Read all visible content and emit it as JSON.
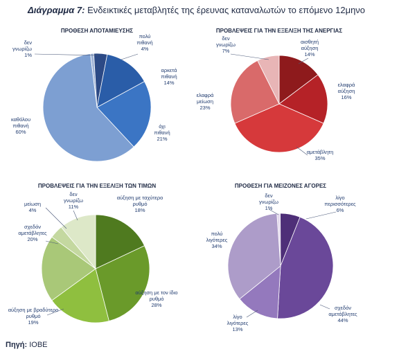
{
  "figure": {
    "title_prefix": "Διάγραμμα 7:",
    "title": "Ενδεικτικές μεταβλητές της έρευνας καταναλωτών το επόμενο 12μηνο",
    "source_label": "Πηγή:",
    "source": "ΙΟΒΕ"
  },
  "chart_data": [
    {
      "type": "pie",
      "title": "ΠΡΟΘΕΣΗ ΑΠΟΤΑΜΙΕΥΣΗΣ",
      "slices": [
        {
          "label": "δεν γνωρίζω",
          "value": 1,
          "value_label": "1%",
          "color": "#9fb3d6"
        },
        {
          "label": "πολύ πιθανή",
          "value": 4,
          "value_label": "4%",
          "color": "#2c4a86"
        },
        {
          "label": "αρκετά πιθανή",
          "value": 14,
          "value_label": "14%",
          "color": "#2a5da8"
        },
        {
          "label": "όχι πιθανή",
          "value": 21,
          "value_label": "21%",
          "color": "#3b75c4"
        },
        {
          "label": "καθόλου πιθανή",
          "value": 60,
          "value_label": "60%",
          "color": "#7d9fd2"
        }
      ]
    },
    {
      "type": "pie",
      "title": "ΠΡΟΒΛΕΨΕΙΣ ΓΙΑ ΤΗΝ ΕΞΕΛΙΞΗ ΤΗΣ ΑΝΕΡΓΙΑΣ",
      "slices": [
        {
          "label": "αισθητή αύξηση",
          "value": 14,
          "value_label": "14%",
          "color": "#8e1a1c"
        },
        {
          "label": "ελαφρά αύξηση",
          "value": 16,
          "value_label": "16%",
          "color": "#b52227"
        },
        {
          "label": "αμετάβλητη",
          "value": 35,
          "value_label": "35%",
          "color": "#d6393b"
        },
        {
          "label": "ελαφρά μείωση",
          "value": 23,
          "value_label": "23%",
          "color": "#d96a6a"
        },
        {
          "label": "δεν γνωρίζω",
          "value": 7,
          "value_label": "7%",
          "color": "#e8b5b6"
        }
      ]
    },
    {
      "type": "pie",
      "title": "ΠΡΟΒΛΕΨΕΙΣ ΓΙΑ ΤΗΝ ΕΞΕΛΙΞΗ ΤΩΝ ΤΙΜΩΝ",
      "slices": [
        {
          "label": "αύξηση με ταχύτερο ρυθμό",
          "value": 18,
          "value_label": "18%",
          "color": "#4f7a1f"
        },
        {
          "label": "αύξηση με τον ίδιο ρυθμό",
          "value": 28,
          "value_label": "28%",
          "color": "#6a9a2a"
        },
        {
          "label": "αύξηση με βραδύτερο ρυθμό",
          "value": 19,
          "value_label": "19%",
          "color": "#8fbf3f"
        },
        {
          "label": "σχεδόν αμετάβλητες",
          "value": 20,
          "value_label": "20%",
          "color": "#a9c878"
        },
        {
          "label": "μείωση",
          "value": 4,
          "value_label": "4%",
          "color": "#c4d8a0"
        },
        {
          "label": "δεν γνωρίζω",
          "value": 11,
          "value_label": "11%",
          "color": "#dde8c8"
        }
      ]
    },
    {
      "type": "pie",
      "title": "ΠΡΟΘΕΣΗ ΓΙΑ ΜΕΙΖΟΝΕΣ ΑΓΟΡΕΣ",
      "slices": [
        {
          "label": "δεν γνωρίζω",
          "value": 1,
          "value_label": "1%",
          "color": "#e2d8ec"
        },
        {
          "label": "λίγο περισσότερες",
          "value": 6,
          "value_label": "6%",
          "color": "#4e2f78"
        },
        {
          "label": "σχεδόν αμετάβλητες",
          "value": 44,
          "value_label": "44%",
          "color": "#6a4899"
        },
        {
          "label": "λίγο λιγότερες",
          "value": 13,
          "value_label": "13%",
          "color": "#9479bd"
        },
        {
          "label": "πολύ λιγότερες",
          "value": 34,
          "value_label": "34%",
          "color": "#ad9cc9"
        }
      ]
    }
  ]
}
